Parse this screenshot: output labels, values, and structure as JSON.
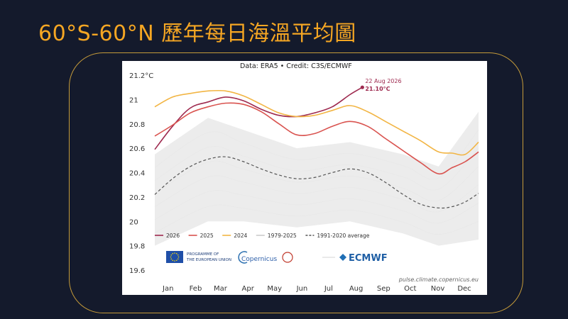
{
  "slide": {
    "title": "60°S-60°N 歷年每日海溫平均圖"
  },
  "chart_data": {
    "type": "line",
    "credit": "Data: ERA5 • Credit: C3S/ECMWF",
    "source_url": "pulse.climate.copernicus.eu",
    "ylim": [
      19.6,
      21.2
    ],
    "y_ticks": [
      {
        "value": 21.2,
        "label": "21.2°C"
      },
      {
        "value": 21.0,
        "label": "21"
      },
      {
        "value": 20.8,
        "label": "20.8"
      },
      {
        "value": 20.6,
        "label": "20.6"
      },
      {
        "value": 20.4,
        "label": "20.4"
      },
      {
        "value": 20.2,
        "label": "20.2"
      },
      {
        "value": 20.0,
        "label": "20"
      },
      {
        "value": 19.8,
        "label": "19.8"
      },
      {
        "value": 19.6,
        "label": "19.6"
      }
    ],
    "xlim": [
      0,
      365
    ],
    "x_ticks": [
      {
        "day": 15,
        "label": "Jan"
      },
      {
        "day": 46,
        "label": "Feb"
      },
      {
        "day": 74,
        "label": "Mar"
      },
      {
        "day": 105,
        "label": "Apr"
      },
      {
        "day": 135,
        "label": "May"
      },
      {
        "day": 166,
        "label": "Jun"
      },
      {
        "day": 196,
        "label": "Jul"
      },
      {
        "day": 227,
        "label": "Aug"
      },
      {
        "day": 258,
        "label": "Sep"
      },
      {
        "day": 288,
        "label": "Oct"
      },
      {
        "day": 319,
        "label": "Nov"
      },
      {
        "day": 349,
        "label": "Dec"
      }
    ],
    "series": [
      {
        "name": "2026",
        "color": "#9e2a4f",
        "width": 1.6,
        "x": [
          0,
          20,
          40,
          60,
          80,
          100,
          120,
          140,
          160,
          180,
          200,
          220,
          234
        ],
        "y": [
          20.59,
          20.78,
          20.93,
          20.98,
          21.02,
          20.99,
          20.92,
          20.87,
          20.86,
          20.89,
          20.94,
          21.04,
          21.1
        ]
      },
      {
        "name": "2025",
        "color": "#d9534f",
        "width": 1.6,
        "x": [
          0,
          20,
          40,
          60,
          80,
          100,
          120,
          140,
          160,
          180,
          200,
          220,
          240,
          260,
          280,
          300,
          320,
          335,
          350,
          365
        ],
        "y": [
          20.7,
          20.79,
          20.89,
          20.94,
          20.97,
          20.96,
          20.9,
          20.8,
          20.71,
          20.72,
          20.78,
          20.82,
          20.78,
          20.68,
          20.58,
          20.48,
          20.39,
          20.44,
          20.49,
          20.57
        ]
      },
      {
        "name": "2024",
        "color": "#f2b544",
        "width": 1.6,
        "x": [
          0,
          20,
          40,
          60,
          80,
          100,
          120,
          140,
          160,
          180,
          200,
          220,
          240,
          260,
          280,
          300,
          320,
          335,
          350,
          365
        ],
        "y": [
          20.94,
          21.02,
          21.05,
          21.07,
          21.07,
          21.03,
          20.96,
          20.89,
          20.86,
          20.87,
          20.91,
          20.95,
          20.9,
          20.82,
          20.74,
          20.66,
          20.57,
          20.56,
          20.55,
          20.65
        ]
      },
      {
        "name": "1991-2020 average",
        "color": "#555555",
        "width": 1.2,
        "dash": "4 3",
        "x": [
          0,
          20,
          40,
          60,
          80,
          100,
          120,
          140,
          160,
          180,
          200,
          220,
          240,
          260,
          280,
          300,
          320,
          335,
          350,
          365
        ],
        "y": [
          20.22,
          20.35,
          20.45,
          20.51,
          20.53,
          20.49,
          20.43,
          20.38,
          20.35,
          20.36,
          20.4,
          20.43,
          20.4,
          20.32,
          20.22,
          20.14,
          20.11,
          20.12,
          20.16,
          20.23
        ]
      }
    ],
    "background_band": {
      "name": "1979-2025",
      "color": "#dddddd",
      "x": [
        0,
        60,
        100,
        160,
        220,
        280,
        320,
        365
      ],
      "low": [
        19.8,
        20.0,
        20.0,
        19.95,
        20.0,
        19.9,
        19.8,
        19.85
      ],
      "high": [
        20.55,
        20.85,
        20.75,
        20.6,
        20.65,
        20.55,
        20.45,
        20.9
      ]
    },
    "legend": [
      {
        "label": "2026",
        "color": "#9e2a4f",
        "dash": ""
      },
      {
        "label": "2025",
        "color": "#d9534f",
        "dash": ""
      },
      {
        "label": "2024",
        "color": "#f2b544",
        "dash": ""
      },
      {
        "label": "1979-2025",
        "color": "#cccccc",
        "dash": ""
      },
      {
        "label": "1991-2020 average",
        "color": "#555555",
        "dash": "3 2"
      }
    ],
    "annotation": {
      "date": "22 Aug 2026",
      "value": "21.10°C",
      "x": 234,
      "y": 21.1,
      "color": "#9e2a4f"
    },
    "logos": {
      "eu_program": [
        "PROGRAMME OF",
        "THE EUROPEAN UNION"
      ],
      "copernicus": "Copernicus",
      "ecmwf": "ECMWF"
    }
  }
}
